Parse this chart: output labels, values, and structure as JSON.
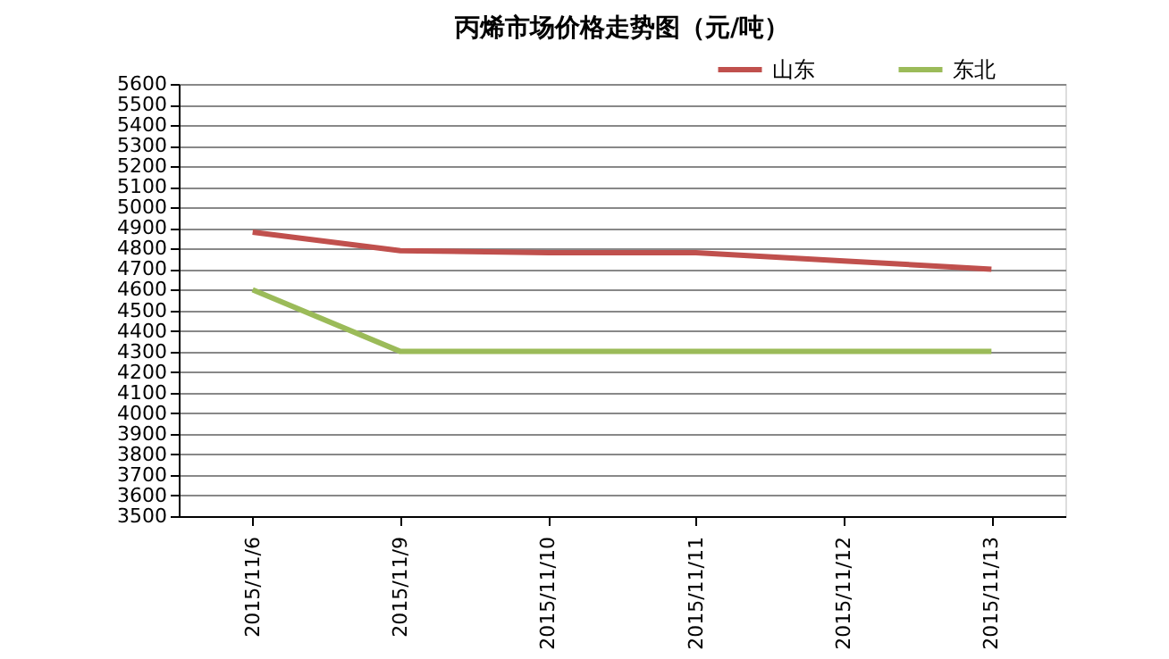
{
  "chart_data": {
    "type": "line",
    "title": "丙烯市场价格走势图（元/吨）",
    "categories": [
      "2015/11/6",
      "2015/11/9",
      "2015/11/10",
      "2015/11/11",
      "2015/11/12",
      "2015/11/13"
    ],
    "series": [
      {
        "name": "山东",
        "color": "#c0504d",
        "values": [
          4880,
          4790,
          4780,
          4780,
          4740,
          4700
        ]
      },
      {
        "name": "东北",
        "color": "#9bbb59",
        "values": [
          4600,
          4300,
          4300,
          4300,
          4300,
          4300
        ]
      }
    ],
    "ylim": [
      3500,
      5600
    ],
    "yticks": [
      3500,
      3600,
      3700,
      3800,
      3900,
      4000,
      4100,
      4200,
      4300,
      4400,
      4500,
      4600,
      4700,
      4800,
      4900,
      5000,
      5100,
      5200,
      5300,
      5400,
      5500,
      5600
    ],
    "grid": "y",
    "legend": "top right",
    "marker": "none",
    "line_style": "solid"
  }
}
